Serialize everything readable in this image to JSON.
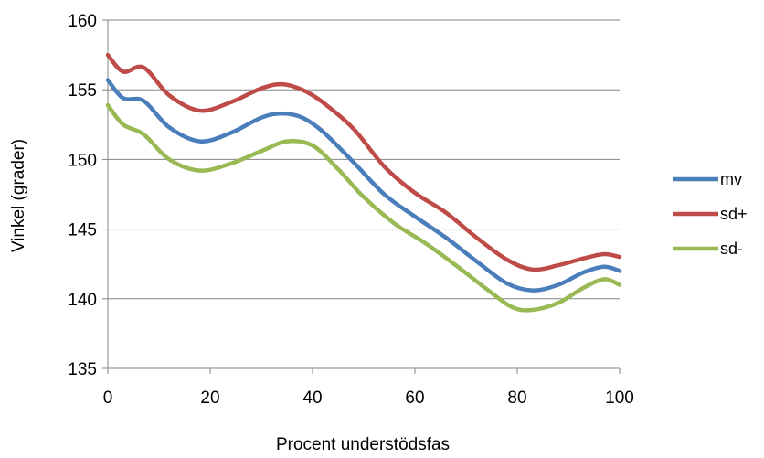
{
  "chart_data": {
    "type": "line",
    "title": "",
    "xlabel": "Procent understödsfas",
    "ylabel": "Vinkel (grader)",
    "xlim": [
      0,
      100
    ],
    "ylim": [
      135,
      160
    ],
    "x_ticks": [
      0,
      20,
      40,
      60,
      80,
      100
    ],
    "y_ticks": [
      135,
      140,
      145,
      150,
      155,
      160
    ],
    "grid": "horizontal",
    "legend": "right",
    "series": [
      {
        "name": "mv",
        "color": "#4a7ebb",
        "x": [
          0,
          3,
          7,
          12,
          18,
          24,
          30,
          34,
          38,
          42,
          48,
          54,
          60,
          66,
          72,
          78,
          83,
          88,
          93,
          97,
          100
        ],
        "y": [
          155.7,
          154.4,
          154.2,
          152.3,
          151.3,
          151.9,
          153.0,
          153.3,
          153.0,
          152.0,
          149.8,
          147.5,
          145.9,
          144.4,
          142.7,
          141.1,
          140.6,
          141.0,
          141.9,
          142.3,
          142.0
        ]
      },
      {
        "name": "sd+",
        "color": "#be4b48",
        "x": [
          0,
          3,
          7,
          12,
          18,
          24,
          30,
          34,
          38,
          42,
          48,
          54,
          60,
          66,
          72,
          78,
          83,
          88,
          93,
          97,
          100
        ],
        "y": [
          157.5,
          156.3,
          156.6,
          154.6,
          153.5,
          154.1,
          155.1,
          155.4,
          155.0,
          154.1,
          152.2,
          149.5,
          147.6,
          146.2,
          144.4,
          142.8,
          142.1,
          142.4,
          142.9,
          143.2,
          143.0
        ]
      },
      {
        "name": "sd-",
        "color": "#98b954",
        "x": [
          0,
          3,
          7,
          12,
          18,
          24,
          30,
          35,
          40,
          45,
          50,
          56,
          62,
          68,
          74,
          79,
          83,
          88,
          93,
          97,
          100
        ],
        "y": [
          153.9,
          152.5,
          151.8,
          150.0,
          149.2,
          149.7,
          150.6,
          151.3,
          151.0,
          149.3,
          147.3,
          145.4,
          144.0,
          142.4,
          140.7,
          139.4,
          139.2,
          139.7,
          140.8,
          141.4,
          141.0
        ]
      }
    ]
  }
}
